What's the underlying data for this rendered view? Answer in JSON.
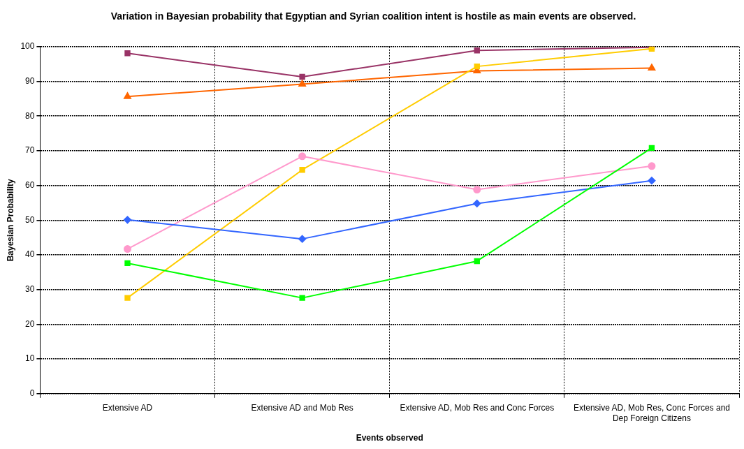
{
  "chart_data": {
    "type": "line",
    "title": "Variation in Bayesian probability that Egyptian and Syrian coalition intent is hostile as main events are observed.",
    "xlabel": "Events observed",
    "ylabel": "Bayesian Probability",
    "categories": [
      "Extensive AD",
      "Extensive AD and Mob Res",
      "Extensive AD, Mob Res and Conc Forces",
      "Extensive AD, Mob Res, Conc Forces and Dep Foreign Citizens"
    ],
    "ylim": [
      0,
      100
    ],
    "yticks": [
      0,
      10,
      20,
      30,
      40,
      50,
      60,
      70,
      80,
      90,
      100
    ],
    "grid": true,
    "legend": false,
    "line_style": "solid",
    "series": [
      {
        "color": "#993366",
        "marker": "square",
        "values": [
          98.1,
          91.3,
          98.9,
          99.8
        ]
      },
      {
        "color": "#ff6600",
        "marker": "triangle",
        "values": [
          85.6,
          89.2,
          93,
          93.8
        ]
      },
      {
        "color": "#ffcc00",
        "marker": "square",
        "values": [
          27.6,
          64.5,
          94.3,
          99.4
        ]
      },
      {
        "color": "#ff99cc",
        "marker": "circle",
        "values": [
          41.7,
          68.4,
          58.8,
          65.6
        ]
      },
      {
        "color": "#3366ff",
        "marker": "diamond",
        "values": [
          50.1,
          44.6,
          54.8,
          61.4
        ]
      },
      {
        "color": "#00ff00",
        "marker": "square",
        "values": [
          37.6,
          27.6,
          38.2,
          70.8
        ]
      }
    ]
  }
}
